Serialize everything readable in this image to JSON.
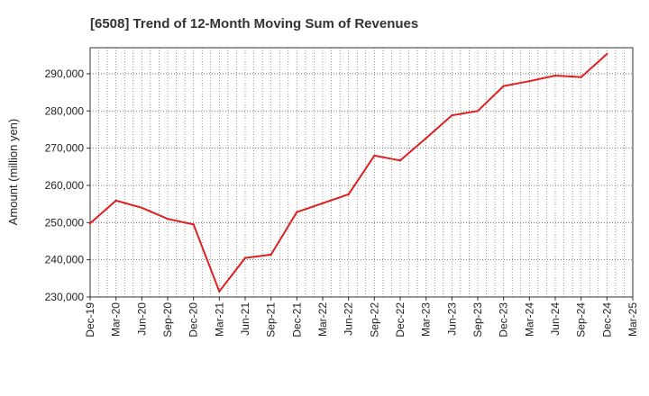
{
  "chart_data": {
    "type": "line",
    "title": "[6508]  Trend of 12-Month Moving Sum of Revenues",
    "xlabel": "",
    "ylabel": "Amount (million yen)",
    "ylim": [
      230000,
      297000
    ],
    "yticks": [
      230000,
      240000,
      250000,
      260000,
      270000,
      280000,
      290000
    ],
    "ytick_labels": [
      "230,000",
      "240,000",
      "250,000",
      "260,000",
      "270,000",
      "280,000",
      "290,000"
    ],
    "xtick_labels": [
      "Dec-19",
      "Mar-20",
      "Jun-20",
      "Sep-20",
      "Dec-20",
      "Mar-21",
      "Jun-21",
      "Sep-21",
      "Dec-21",
      "Mar-22",
      "Jun-22",
      "Sep-22",
      "Dec-22",
      "Mar-23",
      "Jun-23",
      "Sep-23",
      "Dec-23",
      "Mar-24",
      "Jun-24",
      "Sep-24",
      "Dec-24",
      "Mar-25"
    ],
    "grid": "dotted",
    "series": [
      {
        "color": "#e02020",
        "x": [
          "Dec-19",
          "Mar-20",
          "Jun-20",
          "Sep-20",
          "Dec-20",
          "Mar-21",
          "Jun-21",
          "Sep-21",
          "Dec-21",
          "Mar-22",
          "Jun-22",
          "Sep-22",
          "Dec-22",
          "Mar-23",
          "Jun-23",
          "Sep-23",
          "Dec-23",
          "Mar-24",
          "Jun-24",
          "Sep-24",
          "Dec-24"
        ],
        "values": [
          249800,
          255900,
          254000,
          251000,
          249500,
          231500,
          240500,
          241400,
          252800,
          255200,
          257600,
          268000,
          266700,
          272700,
          278800,
          280000,
          286700,
          288000,
          289500,
          289100,
          295300
        ]
      }
    ]
  }
}
